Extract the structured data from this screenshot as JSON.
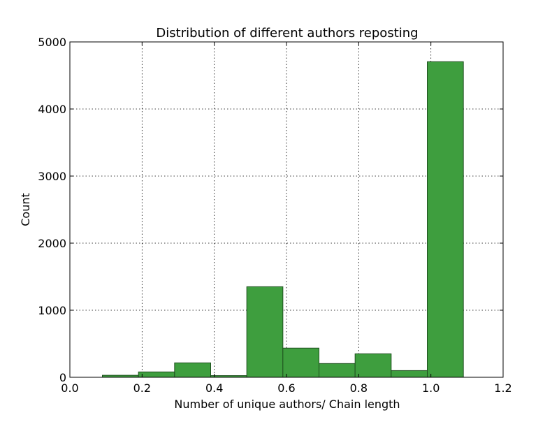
{
  "chart_data": {
    "type": "bar",
    "title": "Distribution of different authors reposting",
    "xlabel": "Number of unique authors/ Chain length",
    "ylabel": "Count",
    "xlim": [
      0.0,
      1.2
    ],
    "ylim": [
      0,
      5000
    ],
    "x_ticks": [
      "0.0",
      "0.2",
      "0.4",
      "0.6",
      "0.8",
      "1.0",
      "1.2"
    ],
    "x_tick_values": [
      0.0,
      0.2,
      0.4,
      0.6,
      0.8,
      1.0,
      1.2
    ],
    "y_ticks": [
      "0",
      "1000",
      "2000",
      "3000",
      "4000",
      "5000"
    ],
    "y_tick_values": [
      0,
      1000,
      2000,
      3000,
      4000,
      5000
    ],
    "grid": true,
    "bar_color": "#3e9e3e",
    "bar_edge_color": "#1f4f1f",
    "bins": [
      {
        "x0": 0.09,
        "x1": 0.19,
        "value": 30
      },
      {
        "x0": 0.19,
        "x1": 0.29,
        "value": 80
      },
      {
        "x0": 0.29,
        "x1": 0.39,
        "value": 215
      },
      {
        "x0": 0.39,
        "x1": 0.49,
        "value": 25
      },
      {
        "x0": 0.49,
        "x1": 0.59,
        "value": 1350
      },
      {
        "x0": 0.59,
        "x1": 0.69,
        "value": 435
      },
      {
        "x0": 0.69,
        "x1": 0.79,
        "value": 205
      },
      {
        "x0": 0.79,
        "x1": 0.89,
        "value": 350
      },
      {
        "x0": 0.89,
        "x1": 0.99,
        "value": 100
      },
      {
        "x0": 0.99,
        "x1": 1.09,
        "value": 4705
      }
    ]
  }
}
